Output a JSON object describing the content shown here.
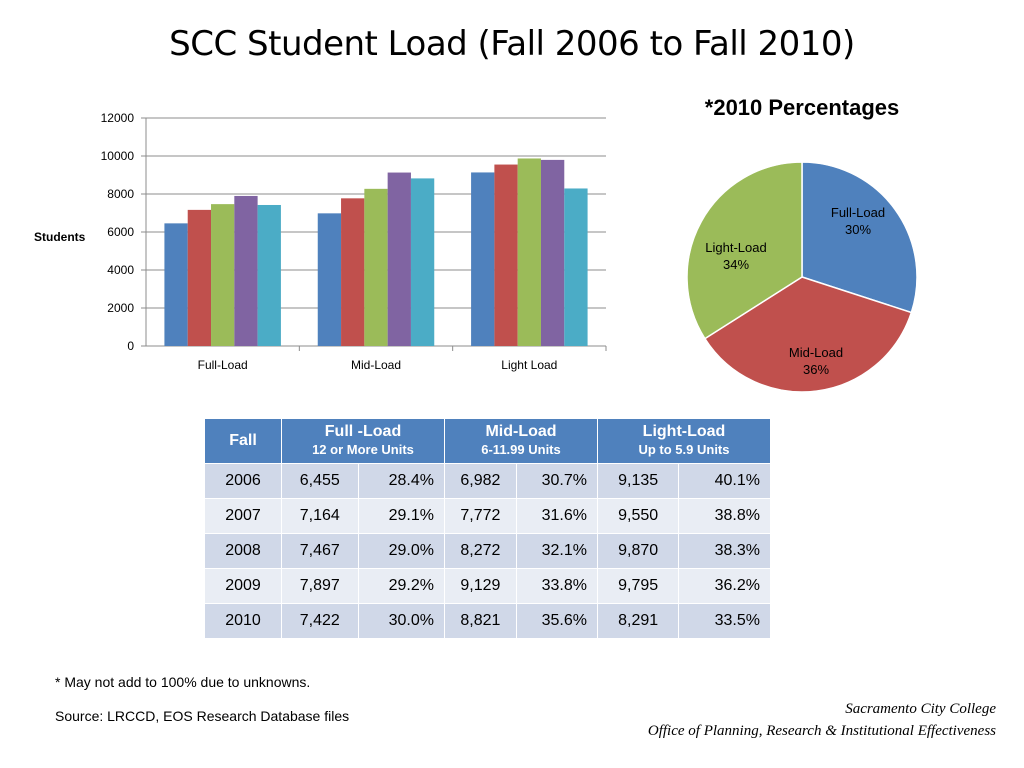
{
  "title": "SCC Student Load (Fall 2006 to Fall 2010)",
  "chart_data": [
    {
      "type": "bar",
      "categories": [
        "Full-Load",
        "Mid-Load",
        "Light Load"
      ],
      "series": [
        {
          "values": [
            6455,
            6982,
            9135
          ],
          "color": "#4f81bd"
        },
        {
          "values": [
            7164,
            7772,
            9550
          ],
          "color": "#c0504d"
        },
        {
          "values": [
            7467,
            8272,
            9870
          ],
          "color": "#9bbb59"
        },
        {
          "values": [
            7897,
            9129,
            9795
          ],
          "color": "#8064a2"
        },
        {
          "values": [
            7422,
            8821,
            8291
          ],
          "color": "#4bacc6"
        }
      ],
      "ylabel": "Students",
      "ylim": [
        0,
        12000
      ],
      "yticks": [
        "0",
        "2000",
        "4000",
        "6000",
        "8000",
        "10000",
        "12000"
      ],
      "grid": true
    },
    {
      "type": "pie",
      "title": "*2010 Percentages",
      "slices": [
        {
          "label": "Full-Load",
          "value": 30,
          "value_label": "30%",
          "color": "#4f81bd"
        },
        {
          "label": "Mid-Load",
          "value": 36,
          "value_label": "36%",
          "color": "#c0504d"
        },
        {
          "label": "Light-Load",
          "value": 34,
          "value_label": "34%",
          "color": "#9bbb59"
        }
      ]
    }
  ],
  "table": {
    "headers": {
      "fall": "Fall",
      "full": "Full -Load",
      "full_sub": "12 or  More Units",
      "mid": "Mid-Load",
      "mid_sub": "6-11.99 Units",
      "light": "Light-Load",
      "light_sub": "Up to 5.9 Units"
    },
    "rows": [
      [
        "2006",
        "6,455",
        "28.4%",
        "6,982",
        "30.7%",
        "9,135",
        "40.1%"
      ],
      [
        "2007",
        "7,164",
        "29.1%",
        "7,772",
        "31.6%",
        "9,550",
        "38.8%"
      ],
      [
        "2008",
        "7,467",
        "29.0%",
        "8,272",
        "32.1%",
        "9,870",
        "38.3%"
      ],
      [
        "2009",
        "7,897",
        "29.2%",
        "9,129",
        "33.8%",
        "9,795",
        "36.2%"
      ],
      [
        "2010",
        "7,422",
        "30.0%",
        "8,821",
        "35.6%",
        "8,291",
        "33.5%"
      ]
    ]
  },
  "notes": {
    "footnote": "* May not add to 100% due to unknowns.",
    "source": "Source: LRCCD, EOS Research Database files"
  },
  "org": {
    "line1": "Sacramento City College",
    "line2": "Office of Planning, Research & Institutional Effectiveness"
  }
}
